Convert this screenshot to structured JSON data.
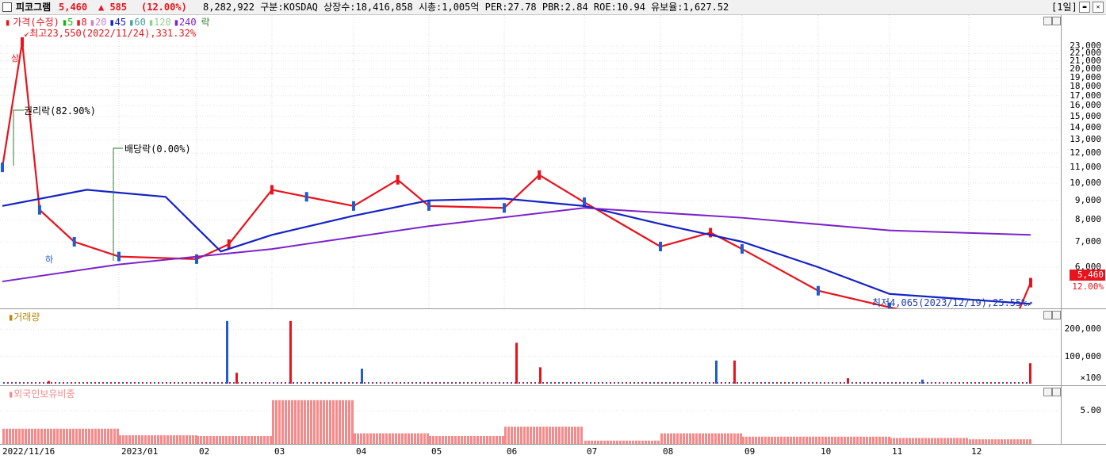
{
  "header": {
    "name": "피코그램",
    "price": "5,460",
    "change": "▲ 585",
    "change_pct": "(12.00%)",
    "info": "8,282,922  구분:KOSDAQ 상장수:18,416,858 시총:1,005억 PER:27.78 PBR:2.84 ROE:10.94 유보율:1,627.52",
    "period": "[1일]"
  },
  "price_panel": {
    "legend_title": "가격(수정)",
    "legend_ma": [
      {
        "label": "5",
        "color": "#19b319"
      },
      {
        "label": "8",
        "color": "#e8131c"
      },
      {
        "label": "20",
        "color": "#d07fd0"
      },
      {
        "label": "45",
        "color": "#1522c4"
      },
      {
        "label": "60",
        "color": "#4aa0a0"
      },
      {
        "label": "120",
        "color": "#8fcf8f"
      },
      {
        "label": "240",
        "color": "#7b22c9"
      }
    ],
    "legend_tail": "락",
    "high_note": "최고23,550(2022/11/24),331.32%",
    "low_note": "최저4,065(2023/12/19),25.55%",
    "rights_note": "권리락(82.90%)",
    "dividend_note": "배당락(0.00%)",
    "up_marker": "상",
    "down_marker": "하",
    "current_price_label": "5,460",
    "current_pct_label": "12.00%"
  },
  "volume_panel": {
    "title": "거래량",
    "unit_note": "×100"
  },
  "foreign_panel": {
    "title": "외국인보유비중"
  },
  "colors": {
    "up": "#e8131c",
    "down": "#1f5bd1",
    "foreign": "#f48a8a"
  },
  "chart_data": [
    {
      "type": "line",
      "title": "",
      "y_ticks": [
        "23,000",
        "22,000",
        "21,000",
        "20,000",
        "19,000",
        "18,000",
        "17,000",
        "16,000",
        "15,000",
        "14,000",
        "13,000",
        "12,000",
        "11,000",
        "10,000",
        "9,000",
        "8,000",
        "7,000",
        "6,000"
      ],
      "ylim": [
        4000,
        24000
      ],
      "scale": "log",
      "x_ticks": [
        "2022/11/16",
        "2023/01",
        "02",
        "03",
        "04",
        "05",
        "06",
        "07",
        "08",
        "09",
        "10",
        "11",
        "12"
      ],
      "series": [
        {
          "name": "가격(수정)",
          "x": [
            "2022/11/16",
            "2022/11/24",
            "2022/12/01",
            "2022/12/15",
            "2023/01/02",
            "2023/02/01",
            "2023/02/13",
            "2023/03/01",
            "2023/03/15",
            "2023/04/03",
            "2023/04/20",
            "2023/05/02",
            "2023/06/01",
            "2023/06/15",
            "2023/07/03",
            "2023/08/01",
            "2023/08/20",
            "2023/09/01",
            "2023/10/04",
            "2023/11/01",
            "2023/12/19",
            "2023/12/28"
          ],
          "values": [
            11000,
            23550,
            8500,
            7000,
            6400,
            6300,
            6900,
            9600,
            9200,
            8700,
            10200,
            8700,
            8600,
            10500,
            8900,
            6800,
            7400,
            6700,
            5200,
            4700,
            4065,
            5460
          ]
        },
        {
          "name": "45",
          "x": [
            "2022/11/16",
            "2022/12/20",
            "2023/01/20",
            "2023/02/10",
            "2023/03/01",
            "2023/04/03",
            "2023/05/02",
            "2023/06/01",
            "2023/07/03",
            "2023/08/01",
            "2023/09/01",
            "2023/10/04",
            "2023/11/01",
            "2023/12/28"
          ],
          "values": [
            8700,
            9600,
            9200,
            6600,
            7300,
            8200,
            9000,
            9100,
            8700,
            7800,
            7000,
            6000,
            5100,
            4800
          ]
        },
        {
          "name": "240",
          "x": [
            "2022/11/16",
            "2023/01/02",
            "2023/03/01",
            "2023/05/02",
            "2023/07/03",
            "2023/09/01",
            "2023/11/01",
            "2023/12/28"
          ],
          "values": [
            5500,
            6100,
            6700,
            7700,
            8600,
            8100,
            7500,
            7300
          ]
        }
      ]
    },
    {
      "type": "bar",
      "title": "거래량",
      "y_ticks": [
        "200,000",
        "100,000"
      ],
      "ylim": [
        0,
        250000
      ],
      "values": [
        10000,
        230000,
        40000,
        230000,
        55000,
        150000,
        60000,
        85000,
        85000,
        20000,
        15000,
        75000
      ],
      "categories": [
        "2022/11",
        "2023/02",
        "2023/02",
        "2023/03",
        "2023/04",
        "2023/06",
        "2023/06",
        "2023/08",
        "2023/09",
        "2023/10",
        "2023/11",
        "2023/12"
      ]
    },
    {
      "type": "bar",
      "title": "외국인보유비중",
      "y_ticks": [
        "5.00"
      ],
      "ylim": [
        0,
        8
      ],
      "categories": [
        "2022/11",
        "2023/01",
        "2023/02",
        "2023/03",
        "2023/04",
        "2023/05",
        "2023/06",
        "2023/07",
        "2023/08",
        "2023/09",
        "2023/10",
        "2023/11",
        "2023/12"
      ],
      "values": [
        2.3,
        1.3,
        1.2,
        6.6,
        1.6,
        1.2,
        2.6,
        0.5,
        1.6,
        1.1,
        1.1,
        0.9,
        0.7
      ]
    }
  ]
}
